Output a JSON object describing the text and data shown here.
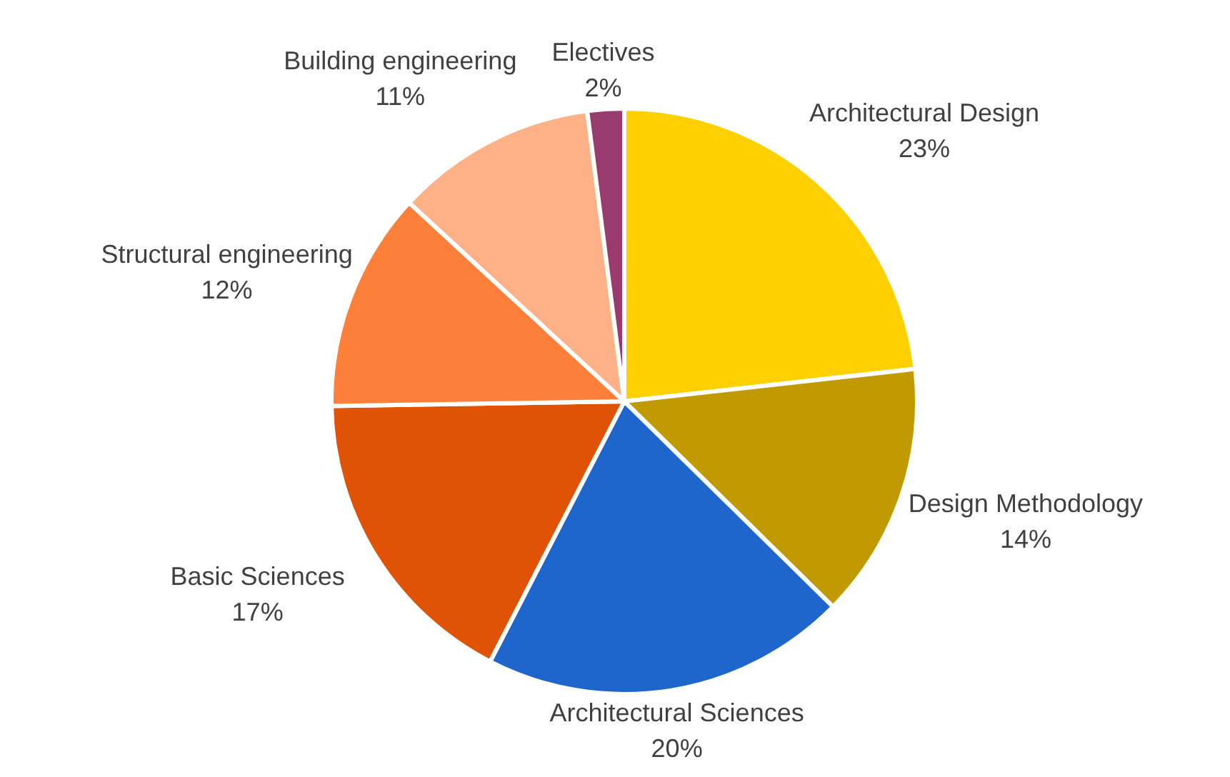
{
  "chart_data": {
    "type": "pie",
    "categories": [
      "Architectural Design",
      "Design Methodology",
      "Architectural Sciences",
      "Basic Sciences",
      "Structural engineering",
      "Building engineering",
      "Electives"
    ],
    "values": [
      23,
      14,
      20,
      17,
      12,
      11,
      2
    ],
    "value_labels": [
      "23%",
      "14%",
      "20%",
      "17%",
      "12%",
      "11%",
      "2%"
    ],
    "colors": [
      "#ffd000",
      "#c09a00",
      "#1f66cc",
      "#e05206",
      "#fd7f3a",
      "#feb186",
      "#993b6e"
    ],
    "legend": false
  }
}
